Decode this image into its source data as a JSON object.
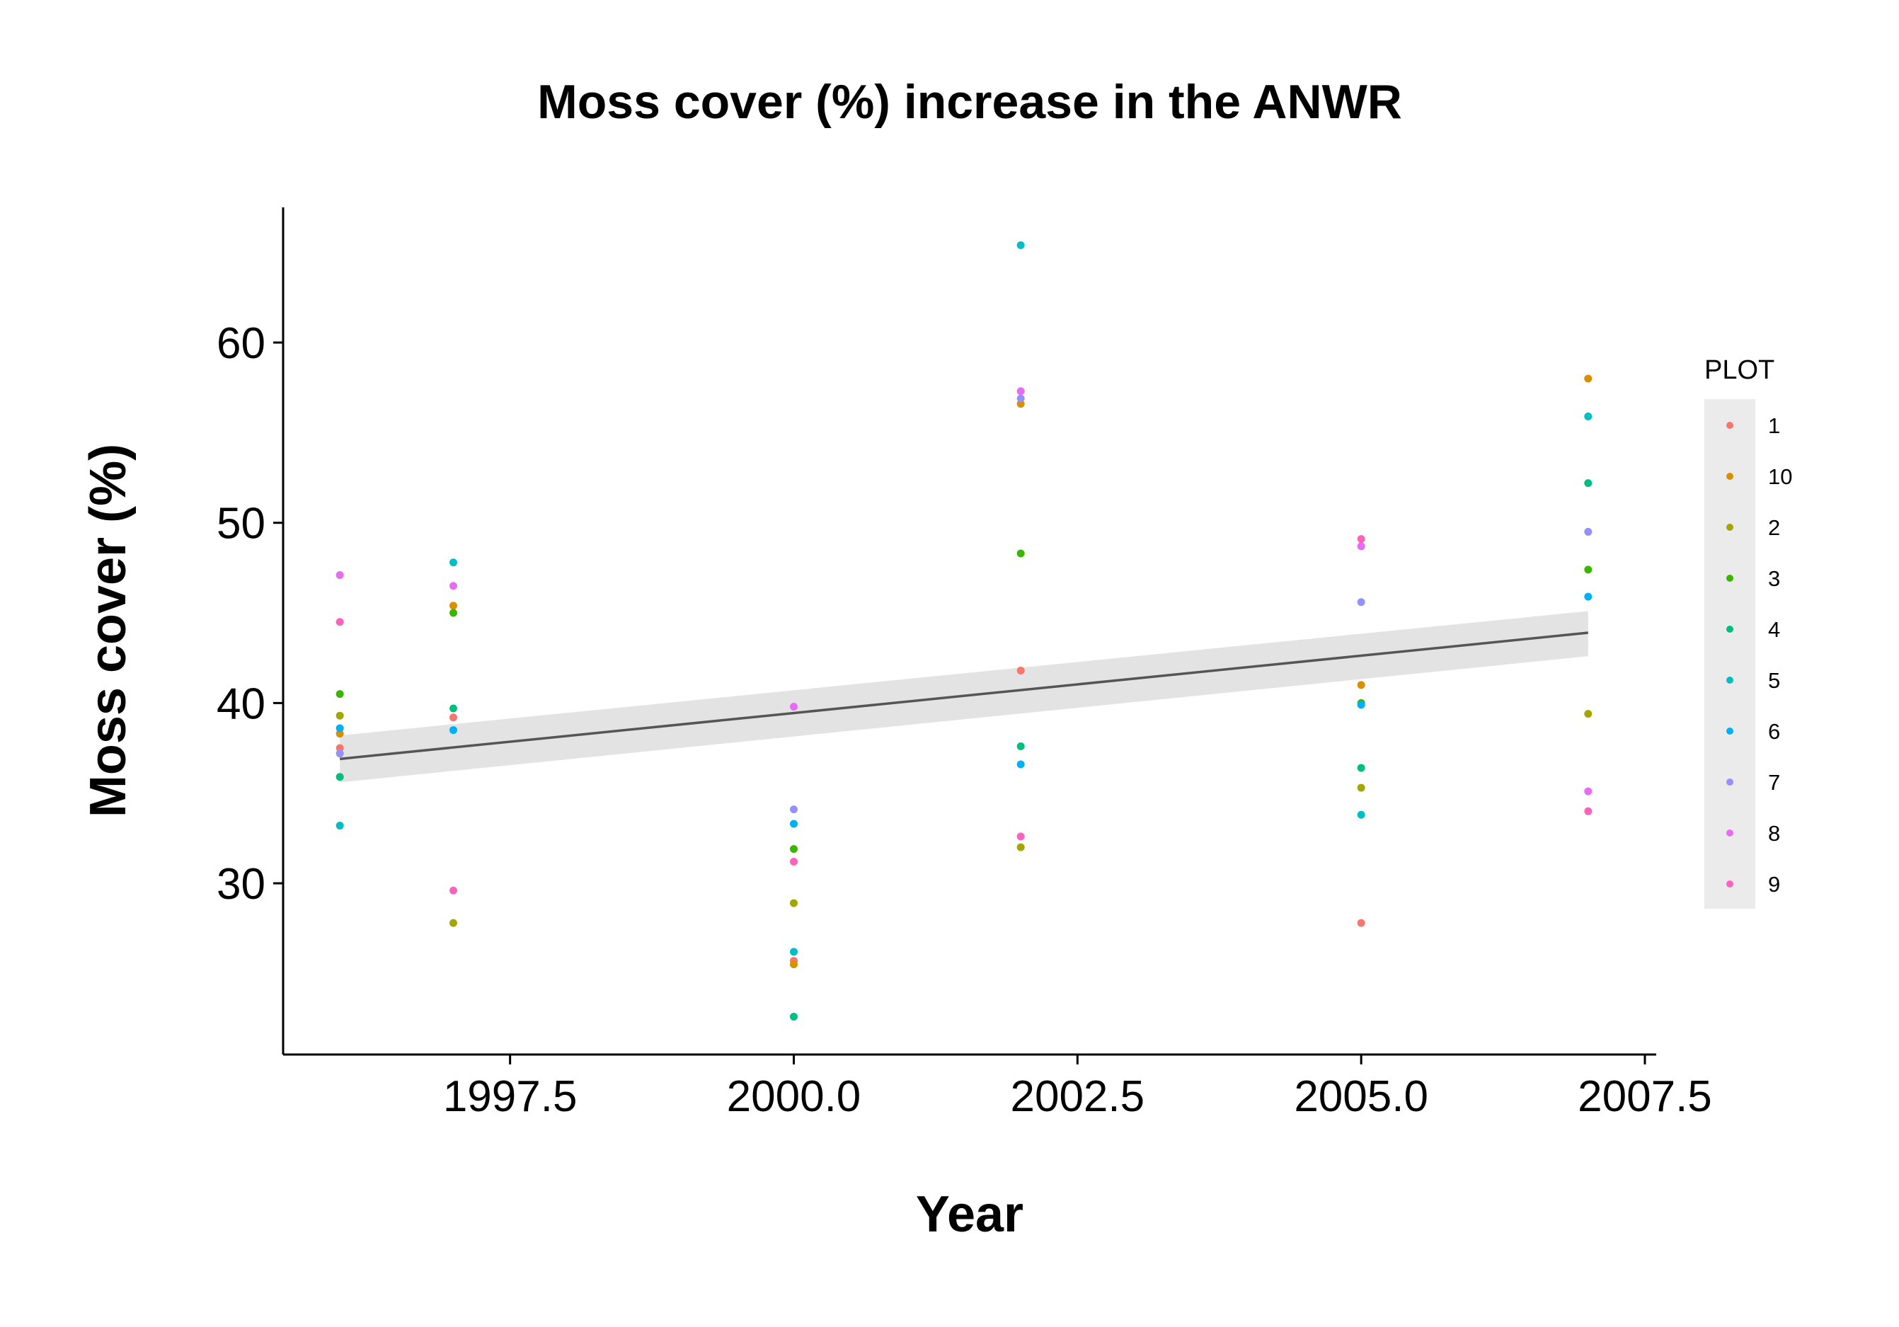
{
  "chart_data": {
    "type": "scatter",
    "title": "Moss cover (%) increase in the ANWR",
    "xlabel": "Year",
    "ylabel": "Moss cover (%)",
    "xlim": [
      1995.5,
      2007.6
    ],
    "ylim": [
      20.5,
      67.5
    ],
    "x_ticks": [
      1997.5,
      2000.0,
      2002.5,
      2005.0,
      2007.5
    ],
    "x_tick_labels": [
      "1997.5",
      "2000.0",
      "2002.5",
      "2005.0",
      "2007.5"
    ],
    "y_ticks": [
      30,
      40,
      50,
      60
    ],
    "y_tick_labels": [
      "30",
      "40",
      "50",
      "60"
    ],
    "grid": false,
    "legend": {
      "title": "PLOT",
      "placement": "right"
    },
    "series": [
      {
        "name": "1",
        "color": "#F8766D",
        "x": [
          1996,
          1997,
          2000,
          2002,
          2005
        ],
        "y": [
          37.5,
          39.2,
          25.7,
          41.8,
          27.8
        ]
      },
      {
        "name": "10",
        "color": "#D89000",
        "x": [
          1996,
          1997,
          2000,
          2002,
          2005,
          2007
        ],
        "y": [
          38.3,
          45.4,
          25.5,
          56.6,
          41.0,
          58.0
        ]
      },
      {
        "name": "2",
        "color": "#A3A500",
        "x": [
          1996,
          1997,
          2000,
          2002,
          2005,
          2007
        ],
        "y": [
          39.3,
          27.8,
          28.9,
          32.0,
          35.3,
          39.4
        ]
      },
      {
        "name": "3",
        "color": "#39B600",
        "x": [
          1996,
          1997,
          2000,
          2002,
          2005,
          2007
        ],
        "y": [
          40.5,
          45.0,
          31.9,
          48.3,
          40.0,
          47.4
        ]
      },
      {
        "name": "4",
        "color": "#00BF7D",
        "x": [
          1996,
          1997,
          2000,
          2002,
          2005,
          2007
        ],
        "y": [
          35.9,
          39.7,
          22.6,
          37.6,
          36.4,
          52.2
        ]
      },
      {
        "name": "5",
        "color": "#00BFC4",
        "x": [
          1996,
          1997,
          2000,
          2002,
          2005,
          2007
        ],
        "y": [
          33.2,
          47.8,
          26.2,
          65.4,
          33.8,
          55.9
        ]
      },
      {
        "name": "6",
        "color": "#00B0F6",
        "x": [
          1996,
          1997,
          2000,
          2002,
          2005,
          2007
        ],
        "y": [
          38.6,
          38.5,
          33.3,
          36.6,
          39.9,
          45.9
        ]
      },
      {
        "name": "7",
        "color": "#9590FF",
        "x": [
          1996,
          2000,
          2002,
          2005,
          2007
        ],
        "y": [
          37.2,
          34.1,
          56.9,
          45.6,
          49.5
        ]
      },
      {
        "name": "8",
        "color": "#E76BF3",
        "x": [
          1996,
          1997,
          2000,
          2002,
          2005,
          2007
        ],
        "y": [
          47.1,
          46.5,
          39.8,
          57.3,
          48.7,
          35.1
        ]
      },
      {
        "name": "9",
        "color": "#FF62BC",
        "x": [
          1996,
          1997,
          2000,
          2002,
          2005,
          2007
        ],
        "y": [
          44.5,
          29.6,
          31.2,
          32.6,
          49.1,
          34.0
        ]
      }
    ],
    "trend": {
      "type": "linear",
      "color": "#555555",
      "band_color": "#e3e3e3",
      "x": [
        1996,
        2007
      ],
      "y": [
        36.9,
        43.9
      ],
      "ci_low": [
        35.6,
        42.6
      ],
      "ci_high": [
        38.2,
        45.1
      ]
    }
  }
}
